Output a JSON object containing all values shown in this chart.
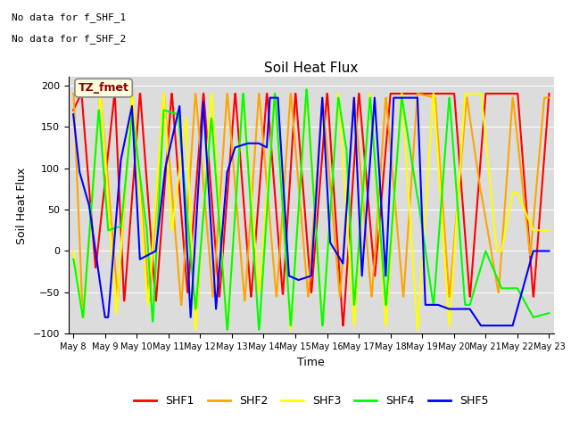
{
  "title": "Soil Heat Flux",
  "xlabel": "Time",
  "ylabel": "Soil Heat Flux",
  "ylim": [
    -100,
    210
  ],
  "annotation_lines": [
    "No data for f_SHF_1",
    "No data for f_SHF_2"
  ],
  "legend_label": "TZ_fmet",
  "background_color": "#dcdcdc",
  "series": {
    "SHF1": {
      "color": "red",
      "times": [
        8.0,
        8.25,
        8.26,
        8.7,
        8.71,
        9.3,
        9.31,
        9.6,
        9.61,
        10.1,
        10.11,
        10.6,
        10.61,
        11.1,
        11.11,
        11.6,
        11.61,
        12.1,
        12.11,
        12.6,
        12.61,
        13.1,
        13.11,
        13.6,
        13.61,
        14.1,
        14.11,
        14.6,
        14.61,
        15.0,
        15.01,
        15.5,
        15.51,
        16.0,
        16.01,
        16.5,
        16.51,
        17.0,
        17.01,
        17.5,
        17.51,
        18.0,
        18.01,
        18.5,
        18.51,
        19.0,
        19.01,
        19.5,
        19.51,
        20.0,
        20.01,
        20.5,
        20.51,
        21.0,
        21.01,
        21.5,
        21.51,
        22.0,
        22.01,
        22.5,
        22.51,
        23.0
      ],
      "values": [
        170,
        190,
        190,
        -20,
        -20,
        190,
        190,
        -60,
        -60,
        190,
        190,
        -60,
        -60,
        190,
        190,
        -50,
        -50,
        190,
        190,
        -55,
        -55,
        190,
        190,
        -55,
        -55,
        190,
        190,
        -52,
        -52,
        190,
        190,
        -50,
        -50,
        190,
        190,
        -90,
        -90,
        190,
        190,
        -30,
        -30,
        190,
        190,
        190,
        190,
        190,
        190,
        190,
        190,
        190,
        190,
        -55,
        -55,
        190,
        190,
        190,
        190,
        190,
        190,
        -55,
        -55,
        190
      ]
    },
    "SHF2": {
      "color": "orange",
      "times": [
        8.0,
        8.01,
        8.3,
        8.31,
        8.85,
        8.86,
        9.4,
        9.41,
        9.85,
        9.86,
        10.4,
        10.41,
        10.85,
        10.86,
        11.4,
        11.41,
        11.85,
        11.86,
        12.4,
        12.41,
        12.85,
        12.86,
        13.4,
        13.41,
        13.85,
        13.86,
        14.4,
        14.41,
        14.85,
        14.86,
        15.4,
        15.41,
        15.85,
        15.86,
        16.4,
        16.41,
        16.85,
        16.86,
        17.4,
        17.41,
        17.85,
        17.86,
        18.4,
        18.41,
        18.85,
        18.86,
        19.4,
        19.41,
        19.85,
        19.86,
        20.4,
        20.41,
        20.85,
        20.86,
        21.4,
        21.41,
        21.85,
        21.86,
        22.4,
        22.41,
        22.85,
        22.86,
        23.0
      ],
      "values": [
        190,
        190,
        -80,
        -80,
        190,
        190,
        -55,
        -55,
        190,
        190,
        -60,
        -60,
        190,
        190,
        -65,
        -65,
        190,
        190,
        -55,
        -55,
        190,
        190,
        -60,
        -60,
        190,
        190,
        -55,
        -55,
        190,
        190,
        -55,
        -55,
        185,
        185,
        -55,
        -55,
        185,
        185,
        -55,
        -55,
        185,
        185,
        -55,
        -55,
        190,
        190,
        185,
        185,
        -55,
        -55,
        185,
        185,
        70,
        70,
        -50,
        -50,
        185,
        185,
        -5,
        -5,
        185,
        185,
        185
      ]
    },
    "SHF3": {
      "color": "yellow",
      "times": [
        8.0,
        8.01,
        8.3,
        8.31,
        8.85,
        8.86,
        9.35,
        9.36,
        9.85,
        9.86,
        10.35,
        10.36,
        10.85,
        10.86,
        11.1,
        11.11,
        11.55,
        11.56,
        11.85,
        11.86,
        12.35,
        12.36,
        12.85,
        12.86,
        13.35,
        13.36,
        13.85,
        13.86,
        14.35,
        14.36,
        14.85,
        14.86,
        15.35,
        15.36,
        15.85,
        15.86,
        16.35,
        16.36,
        16.85,
        16.86,
        17.35,
        17.36,
        17.85,
        17.86,
        18.35,
        18.36,
        18.85,
        18.86,
        19.35,
        19.36,
        19.85,
        19.86,
        20.35,
        20.36,
        20.85,
        20.86,
        21.35,
        21.5,
        21.85,
        22.0,
        22.5,
        23.0
      ],
      "values": [
        0,
        0,
        -80,
        -80,
        190,
        190,
        -75,
        -75,
        190,
        190,
        -65,
        -65,
        190,
        190,
        25,
        25,
        160,
        160,
        -95,
        -95,
        190,
        190,
        -95,
        -95,
        190,
        190,
        -50,
        -50,
        190,
        190,
        -95,
        -95,
        190,
        190,
        -90,
        -90,
        190,
        190,
        -90,
        -90,
        190,
        190,
        -90,
        -90,
        190,
        190,
        -95,
        -95,
        190,
        190,
        -90,
        -90,
        190,
        190,
        190,
        190,
        0,
        0,
        70,
        70,
        25,
        25
      ]
    },
    "SHF4": {
      "color": "lime",
      "times": [
        8.0,
        8.01,
        8.3,
        8.31,
        8.8,
        8.81,
        9.1,
        9.11,
        9.5,
        9.51,
        9.85,
        9.86,
        10.3,
        10.31,
        10.5,
        10.51,
        10.85,
        10.86,
        11.3,
        11.31,
        11.85,
        11.86,
        12.35,
        12.36,
        12.85,
        12.86,
        13.35,
        13.36,
        13.85,
        13.86,
        14.35,
        14.36,
        14.85,
        14.86,
        15.35,
        15.36,
        15.85,
        15.86,
        16.35,
        16.36,
        16.6,
        16.61,
        16.85,
        16.86,
        17.35,
        17.36,
        17.85,
        17.86,
        18.35,
        18.36,
        18.85,
        18.86,
        19.35,
        19.36,
        19.85,
        19.86,
        20.35,
        20.5,
        21.0,
        21.5,
        22.0,
        22.5,
        23.0
      ],
      "values": [
        -10,
        -10,
        -80,
        -80,
        170,
        170,
        25,
        25,
        30,
        30,
        165,
        165,
        30,
        30,
        -85,
        -85,
        170,
        170,
        165,
        165,
        -70,
        -70,
        160,
        160,
        -95,
        -95,
        190,
        190,
        -95,
        -95,
        190,
        190,
        -90,
        -90,
        195,
        195,
        -90,
        -90,
        185,
        185,
        125,
        125,
        -65,
        -65,
        185,
        185,
        -65,
        -65,
        185,
        185,
        65,
        65,
        -65,
        -65,
        185,
        185,
        -65,
        -65,
        0,
        -45,
        -45,
        -80,
        -75
      ]
    },
    "SHF5": {
      "color": "blue",
      "times": [
        8.0,
        8.2,
        8.5,
        8.7,
        9.0,
        9.1,
        9.5,
        9.85,
        10.1,
        10.6,
        10.9,
        11.35,
        11.7,
        12.1,
        12.5,
        12.85,
        13.1,
        13.5,
        13.85,
        14.1,
        14.2,
        14.45,
        14.8,
        15.1,
        15.5,
        15.85,
        16.1,
        16.5,
        16.85,
        17.1,
        17.5,
        17.85,
        18.1,
        18.5,
        18.85,
        19.1,
        19.5,
        19.85,
        20.1,
        20.5,
        20.85,
        21.1,
        21.5,
        21.85,
        22.5,
        23.0
      ],
      "values": [
        165,
        95,
        55,
        0,
        -80,
        -80,
        110,
        175,
        -10,
        0,
        100,
        175,
        -80,
        180,
        -70,
        95,
        125,
        130,
        130,
        125,
        185,
        185,
        -30,
        -35,
        -30,
        185,
        10,
        -15,
        185,
        -30,
        185,
        -30,
        185,
        185,
        185,
        -65,
        -65,
        -70,
        -70,
        -70,
        -90,
        -90,
        -90,
        -90,
        0,
        0
      ]
    }
  },
  "legend_entries": [
    "SHF1",
    "SHF2",
    "SHF3",
    "SHF4",
    "SHF5"
  ],
  "legend_colors": [
    "red",
    "orange",
    "yellow",
    "lime",
    "blue"
  ],
  "xticklabels": [
    "May 8",
    "May 9",
    "May 10",
    "May 11",
    "May 12",
    "May 13",
    "May 14",
    "May 15",
    "May 16",
    "May 17",
    "May 18",
    "May 19",
    "May 20",
    "May 21",
    "May 22",
    "May 23"
  ],
  "xtick_positions": [
    8,
    9,
    10,
    11,
    12,
    13,
    14,
    15,
    16,
    17,
    18,
    19,
    20,
    21,
    22,
    23
  ],
  "figsize": [
    6.4,
    4.8
  ],
  "dpi": 100
}
